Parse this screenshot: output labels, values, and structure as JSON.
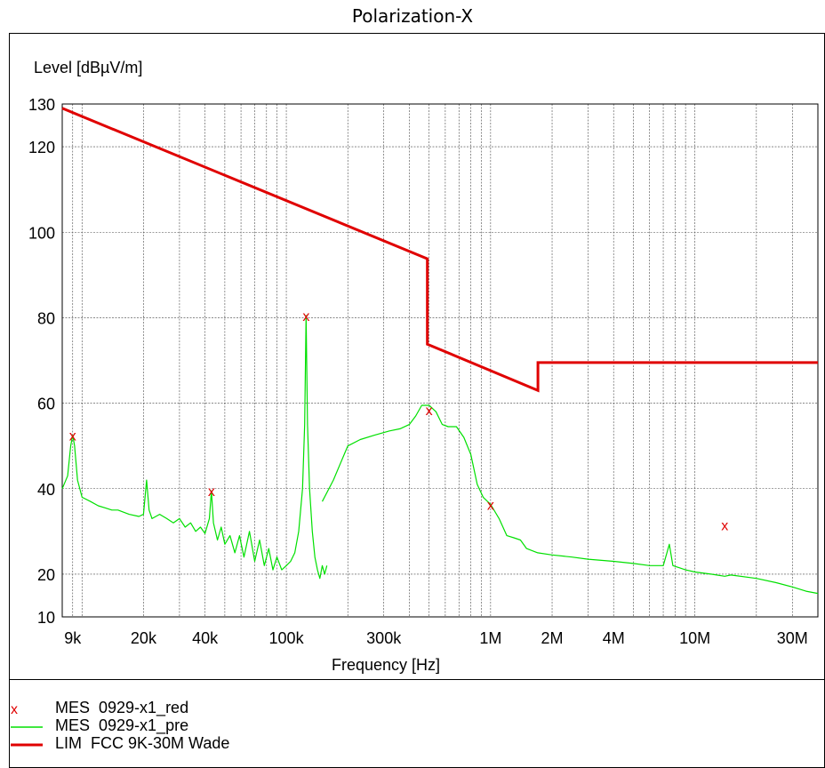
{
  "chart_data": {
    "type": "line",
    "title": "Polarization-X",
    "xlabel": "Frequency [Hz]",
    "ylabel": "Level [dBµV/m]",
    "x_scale": "log",
    "xlim": [
      8000,
      40000000
    ],
    "ylim": [
      10,
      130
    ],
    "yticks": [
      10,
      20,
      40,
      60,
      80,
      100,
      120,
      130
    ],
    "xticks": [
      {
        "value": 9000,
        "label": "9k"
      },
      {
        "value": 20000,
        "label": "20k"
      },
      {
        "value": 40000,
        "label": "40k"
      },
      {
        "value": 100000,
        "label": "100k"
      },
      {
        "value": 300000,
        "label": "300k"
      },
      {
        "value": 1000000,
        "label": "1M"
      },
      {
        "value": 2000000,
        "label": "2M"
      },
      {
        "value": 4000000,
        "label": "4M"
      },
      {
        "value": 10000000,
        "label": "10M"
      },
      {
        "value": 30000000,
        "label": "30M"
      }
    ],
    "grid": true,
    "legend_position": "bottom",
    "series": [
      {
        "name": "MES  0929-x1_red",
        "kind": "markers",
        "color": "#e00000",
        "points": [
          [
            9000,
            52.5
          ],
          [
            43000,
            39.5
          ],
          [
            125000,
            80.5
          ],
          [
            500000,
            58.5
          ],
          [
            1000000,
            36.3
          ],
          [
            14000000,
            31.5
          ]
        ]
      },
      {
        "name": "MES  0929-x1_pre",
        "kind": "line",
        "color": "#00e000",
        "segments": [
          [
            [
              8000,
              40
            ],
            [
              8500,
              43
            ],
            [
              8800,
              50
            ],
            [
              9000,
              52.5
            ],
            [
              9200,
              50
            ],
            [
              9500,
              42
            ],
            [
              10000,
              38
            ],
            [
              11000,
              37
            ],
            [
              12000,
              36
            ],
            [
              13000,
              35.5
            ],
            [
              14000,
              35
            ],
            [
              15000,
              35
            ],
            [
              17000,
              34
            ],
            [
              19000,
              33.5
            ],
            [
              20000,
              34
            ],
            [
              20700,
              42
            ],
            [
              21300,
              35
            ],
            [
              22000,
              33
            ],
            [
              24000,
              34
            ],
            [
              26000,
              33
            ],
            [
              28000,
              32
            ],
            [
              30000,
              33
            ],
            [
              32000,
              31
            ],
            [
              34000,
              32
            ],
            [
              36000,
              30
            ],
            [
              38000,
              31
            ],
            [
              40000,
              29.5
            ],
            [
              42000,
              33
            ],
            [
              43000,
              39.5
            ],
            [
              44000,
              32
            ],
            [
              46000,
              28
            ],
            [
              48000,
              31
            ],
            [
              50000,
              27
            ],
            [
              53000,
              29
            ],
            [
              56000,
              25
            ],
            [
              59000,
              29
            ],
            [
              62000,
              24
            ],
            [
              66000,
              30
            ],
            [
              70000,
              23
            ],
            [
              74000,
              28
            ],
            [
              78000,
              22
            ],
            [
              82000,
              26
            ],
            [
              86000,
              21
            ],
            [
              90000,
              24
            ],
            [
              95000,
              21
            ],
            [
              100000,
              22
            ],
            [
              105000,
              23
            ],
            [
              110000,
              25
            ],
            [
              115000,
              30
            ],
            [
              120000,
              40
            ],
            [
              123000,
              55
            ],
            [
              125000,
              80.5
            ],
            [
              127000,
              55
            ],
            [
              130000,
              40
            ],
            [
              134000,
              30
            ],
            [
              138000,
              24
            ],
            [
              142000,
              21
            ],
            [
              146000,
              19
            ],
            [
              150000,
              22
            ],
            [
              154000,
              20
            ],
            [
              158000,
              22
            ]
          ],
          [
            [
              150000,
              37
            ],
            [
              170000,
              42
            ],
            [
              200000,
              50
            ],
            [
              230000,
              51.5
            ],
            [
              270000,
              52.5
            ],
            [
              320000,
              53.5
            ],
            [
              360000,
              54
            ],
            [
              400000,
              55
            ],
            [
              430000,
              57
            ],
            [
              460000,
              59.5
            ],
            [
              500000,
              59.5
            ],
            [
              540000,
              58
            ],
            [
              580000,
              55
            ],
            [
              620000,
              54.5
            ],
            [
              680000,
              54.5
            ],
            [
              740000,
              52
            ],
            [
              800000,
              48
            ],
            [
              860000,
              41
            ],
            [
              920000,
              38
            ],
            [
              1000000,
              36.3
            ],
            [
              1100000,
              33
            ],
            [
              1200000,
              29
            ],
            [
              1300000,
              28.5
            ],
            [
              1400000,
              28
            ],
            [
              1500000,
              26
            ],
            [
              1700000,
              25
            ],
            [
              2000000,
              24.5
            ],
            [
              2500000,
              24
            ],
            [
              3000000,
              23.5
            ],
            [
              4000000,
              23
            ],
            [
              5000000,
              22.5
            ],
            [
              6000000,
              22
            ],
            [
              7000000,
              22
            ],
            [
              7500000,
              27
            ],
            [
              7800000,
              22
            ],
            [
              9000000,
              21
            ],
            [
              10000000,
              20.5
            ],
            [
              12000000,
              20
            ],
            [
              14000000,
              19.5
            ],
            [
              15000000,
              19.8
            ],
            [
              20000000,
              19
            ],
            [
              25000000,
              18
            ],
            [
              30000000,
              17
            ],
            [
              35000000,
              16
            ],
            [
              40000000,
              15.5
            ]
          ]
        ]
      },
      {
        "name": "LIM  FCC 9K-30M Wade",
        "kind": "line",
        "color": "#e00000",
        "points": [
          [
            8000,
            129
          ],
          [
            490000,
            93.8
          ],
          [
            490000,
            73.8
          ],
          [
            1705000,
            63
          ],
          [
            1705000,
            69.5
          ],
          [
            40000000,
            69.5
          ]
        ]
      }
    ]
  }
}
